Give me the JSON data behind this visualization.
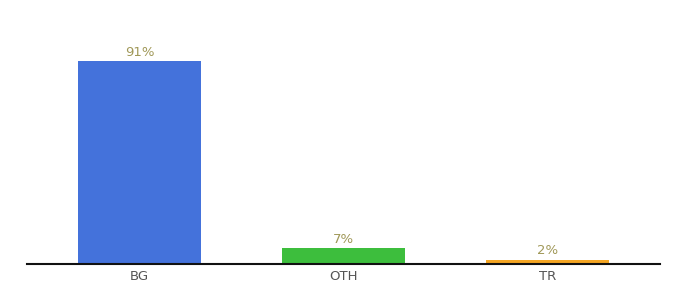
{
  "categories": [
    "BG",
    "OTH",
    "TR"
  ],
  "values": [
    91,
    7,
    2
  ],
  "bar_colors": [
    "#4472db",
    "#3dbe3d",
    "#f5a623"
  ],
  "labels": [
    "91%",
    "7%",
    "2%"
  ],
  "label_color": "#a09858",
  "ylim": [
    0,
    105
  ],
  "background_color": "#ffffff",
  "bar_width": 0.6,
  "label_fontsize": 9.5,
  "tick_fontsize": 9.5,
  "axis_line_color": "#111111",
  "x_positions": [
    0,
    1,
    2
  ],
  "xlim": [
    -0.55,
    2.55
  ]
}
